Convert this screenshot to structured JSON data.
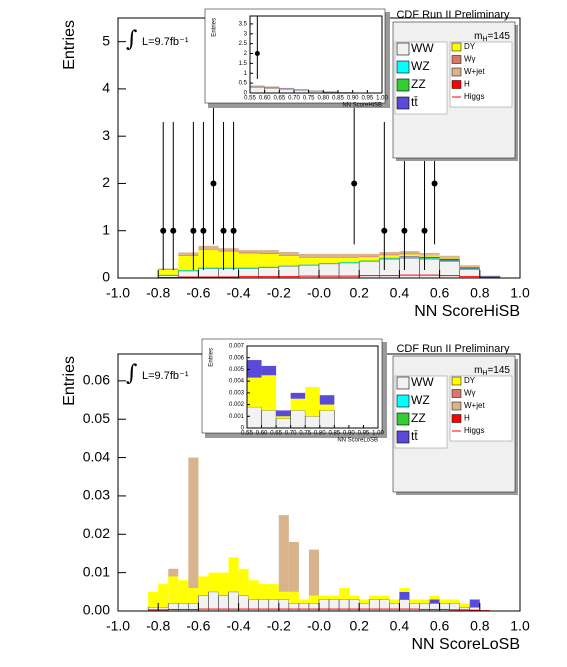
{
  "chart_data": [
    {
      "type": "histogram",
      "title": "CDF Run II Preliminary",
      "lumi_symbol": "∫",
      "lumi": "L=9.7fb⁻¹",
      "mass_label": "m",
      "mass_subscript": "H",
      "mass_value": "=145",
      "x_label": "NN ScoreHiSB",
      "y_label": "Entries",
      "xlim": [
        -1,
        1
      ],
      "ylim": [
        0,
        5.5
      ],
      "xticks": [
        {
          "value": -1,
          "label": "-1.0"
        },
        {
          "value": -0.8,
          "label": "-0.8"
        },
        {
          "value": -0.6,
          "label": "-0.6"
        },
        {
          "value": -0.4,
          "label": "-0.4"
        },
        {
          "value": -0.2,
          "label": "-0.2"
        },
        {
          "value": 0,
          "label": "-0.0"
        },
        {
          "value": 0.2,
          "label": "0.2"
        },
        {
          "value": 0.4,
          "label": "0.4"
        },
        {
          "value": 0.6,
          "label": "0.6"
        },
        {
          "value": 0.8,
          "label": "0.8"
        },
        {
          "value": 1,
          "label": "1.0"
        }
      ],
      "yticks": [
        0,
        1,
        2,
        3,
        4,
        5
      ],
      "bins": [
        -0.8,
        -0.7,
        -0.6,
        -0.5,
        -0.4,
        -0.3,
        -0.2,
        -0.1,
        0,
        0.1,
        0.2,
        0.3,
        0.4,
        0.5,
        0.6,
        0.7,
        0.8,
        0.9
      ],
      "series": [
        {
          "name": "WW",
          "color": "#f2f2f2",
          "values": [
            0.05,
            0.15,
            0.2,
            0.2,
            0.2,
            0.22,
            0.25,
            0.27,
            0.3,
            0.32,
            0.35,
            0.4,
            0.42,
            0.4,
            0.35,
            0.18,
            0.03
          ]
        },
        {
          "name": "WZ",
          "color": "#00ffff",
          "values": [
            0.01,
            0.01,
            0.01,
            0.01,
            0.01,
            0.01,
            0.01,
            0.01,
            0.01,
            0.01,
            0.01,
            0.01,
            0.01,
            0.01,
            0.01,
            0.01,
            0
          ]
        },
        {
          "name": "ZZ",
          "color": "#33cc33",
          "values": [
            0.01,
            0.01,
            0.01,
            0.01,
            0.01,
            0.01,
            0.01,
            0.01,
            0.01,
            0.01,
            0.01,
            0.01,
            0.01,
            0.01,
            0.01,
            0.01,
            0
          ]
        },
        {
          "name": "tt̄",
          "color": "#5a4bd6",
          "values": [
            0,
            0,
            0,
            0,
            0,
            0,
            0,
            0,
            0,
            0,
            0,
            0.01,
            0.02,
            0.03,
            0.04,
            0.03,
            0.01
          ]
        },
        {
          "name": "DY",
          "color": "#ffff00",
          "values": [
            0.1,
            0.3,
            0.38,
            0.34,
            0.3,
            0.27,
            0.2,
            0.14,
            0.11,
            0.09,
            0.07,
            0.05,
            0.04,
            0.03,
            0.02,
            0.01,
            0
          ]
        },
        {
          "name": "Wγ",
          "color": "#d9776b",
          "values": [
            0.01,
            0.02,
            0.02,
            0.02,
            0.02,
            0.02,
            0.02,
            0.02,
            0.02,
            0.02,
            0.02,
            0.02,
            0.02,
            0.01,
            0.01,
            0.01,
            0
          ]
        },
        {
          "name": "W+jet",
          "color": "#d9b38c",
          "values": [
            0.02,
            0.05,
            0.06,
            0.05,
            0.05,
            0.06,
            0.06,
            0.06,
            0.06,
            0.06,
            0.05,
            0.05,
            0.05,
            0.04,
            0.03,
            0.02,
            0.01
          ]
        },
        {
          "name": "H",
          "color": "#ff0000",
          "values": [
            0,
            0,
            0,
            0,
            0,
            0,
            0,
            0,
            0,
            0,
            0,
            0,
            0,
            0,
            0,
            0,
            0
          ]
        },
        {
          "name": "Higgs",
          "color": "#ff0000",
          "stack": false,
          "values": [
            0.01,
            0.02,
            0.02,
            0.02,
            0.03,
            0.03,
            0.03,
            0.04,
            0.04,
            0.04,
            0.05,
            0.05,
            0.06,
            0.06,
            0.05,
            0.03,
            0.01
          ]
        }
      ],
      "points": {
        "x": [
          -0.775,
          -0.725,
          -0.625,
          -0.575,
          -0.525,
          -0.475,
          -0.425,
          0.175,
          0.325,
          0.425,
          0.525,
          0.575
        ],
        "values": [
          1,
          1,
          1,
          1,
          2,
          1,
          1,
          2,
          1,
          1,
          1,
          2
        ],
        "yerr_low": [
          0.83,
          0.83,
          0.83,
          0.83,
          1.29,
          0.83,
          0.83,
          1.29,
          0.83,
          0.83,
          0.83,
          1.29
        ],
        "yerr_high": [
          2.3,
          2.3,
          2.3,
          2.3,
          2.64,
          2.3,
          2.3,
          2.64,
          2.3,
          2.3,
          2.3,
          2.64
        ]
      }
    },
    {
      "type": "histogram",
      "x_label": "NN ScoreHiSB",
      "y_label": "Entries",
      "xlim": [
        0.55,
        1
      ],
      "ylim": [
        0,
        3.9
      ],
      "xticks": [
        {
          "value": 0.55,
          "label": "0.55"
        },
        {
          "value": 0.6,
          "label": "0.60"
        },
        {
          "value": 0.65,
          "label": "0.65"
        },
        {
          "value": 0.7,
          "label": "0.70"
        },
        {
          "value": 0.75,
          "label": "0.75"
        },
        {
          "value": 0.8,
          "label": "0.80"
        },
        {
          "value": 0.85,
          "label": "0.85"
        },
        {
          "value": 0.9,
          "label": "0.90"
        },
        {
          "value": 0.95,
          "label": "0.95"
        },
        {
          "value": 1,
          "label": "1.00"
        }
      ],
      "yticks": [
        0,
        0.5,
        1,
        1.5,
        2,
        2.5,
        3,
        3.5
      ],
      "bins": [
        0.55,
        0.6,
        0.65,
        0.7,
        0.75,
        0.8,
        0.85,
        0.9,
        0.95,
        1
      ],
      "series": [
        {
          "color": "#f2f2f2",
          "values": [
            0.3,
            0.25,
            0.2,
            0.15,
            0.1,
            0.05,
            0.02,
            0,
            0
          ]
        },
        {
          "color": "#5a4bd6",
          "values": [
            0.03,
            0.04,
            0.03,
            0.02,
            0.01,
            0.01,
            0,
            0,
            0
          ]
        },
        {
          "color": "#ffff00",
          "values": [
            0.02,
            0.02,
            0.01,
            0.01,
            0,
            0,
            0,
            0,
            0
          ]
        },
        {
          "color": "#d9b38c",
          "values": [
            0.03,
            0.03,
            0.02,
            0.02,
            0.01,
            0.01,
            0,
            0,
            0
          ]
        }
      ],
      "points": {
        "x": [
          0.575
        ],
        "values": [
          2
        ],
        "yerr_low": [
          1.29
        ],
        "yerr_high": [
          2.64
        ]
      }
    },
    {
      "type": "histogram",
      "title": "CDF Run II Preliminary",
      "lumi_symbol": "∫",
      "lumi": "L=9.7fb⁻¹",
      "mass_label": "m",
      "mass_subscript": "H",
      "mass_value": "=145",
      "x_label": "NN ScoreLoSB",
      "y_label": "Entries",
      "xlim": [
        -1,
        1
      ],
      "ylim": [
        0,
        0.067
      ],
      "xticks": [
        {
          "value": -1,
          "label": "-1.0"
        },
        {
          "value": -0.8,
          "label": "-0.8"
        },
        {
          "value": -0.6,
          "label": "-0.6"
        },
        {
          "value": -0.4,
          "label": "-0.4"
        },
        {
          "value": -0.2,
          "label": "-0.2"
        },
        {
          "value": 0,
          "label": "-0.0"
        },
        {
          "value": 0.2,
          "label": "0.2"
        },
        {
          "value": 0.4,
          "label": "0.4"
        },
        {
          "value": 0.6,
          "label": "0.6"
        },
        {
          "value": 0.8,
          "label": "0.8"
        },
        {
          "value": 1,
          "label": "1.0"
        }
      ],
      "yticks": [
        {
          "value": 0,
          "label": "0.00"
        },
        0.01,
        0.02,
        0.03,
        0.04,
        0.05,
        0.06
      ],
      "bins": [
        -0.85,
        -0.8,
        -0.75,
        -0.7,
        -0.65,
        -0.6,
        -0.55,
        -0.5,
        -0.45,
        -0.4,
        -0.35,
        -0.3,
        -0.25,
        -0.2,
        -0.15,
        -0.1,
        -0.05,
        0,
        0.05,
        0.1,
        0.15,
        0.2,
        0.25,
        0.3,
        0.35,
        0.4,
        0.45,
        0.5,
        0.55,
        0.6,
        0.65,
        0.7,
        0.75,
        0.8,
        0.85
      ],
      "series": [
        {
          "name": "WW",
          "color": "#f2f2f2",
          "values": [
            0.001,
            0.001,
            0.002,
            0.002,
            0.002,
            0.004,
            0.005,
            0.004,
            0.005,
            0.004,
            0.003,
            0.003,
            0.003,
            0.003,
            0.002,
            0.002,
            0.002,
            0.003,
            0.003,
            0.003,
            0.003,
            0.002,
            0.003,
            0.003,
            0.002,
            0.003,
            0.002,
            0.002,
            0.002,
            0.002,
            0.002,
            0.001,
            0.001,
            0
          ]
        },
        {
          "name": "WZ",
          "color": "#00ffff",
          "values": [
            0,
            0,
            0,
            0,
            0,
            0,
            0,
            0,
            0,
            0,
            0,
            0,
            0,
            0,
            0,
            0,
            0,
            0,
            0,
            0,
            0,
            0,
            0,
            0,
            0,
            0,
            0,
            0,
            0,
            0,
            0,
            0,
            0,
            0
          ]
        },
        {
          "name": "ZZ",
          "color": "#33cc33",
          "values": [
            0,
            0,
            0,
            0,
            0,
            0,
            0,
            0,
            0,
            0,
            0,
            0,
            0,
            0,
            0,
            0,
            0,
            0,
            0,
            0,
            0,
            0,
            0,
            0,
            0,
            0,
            0,
            0,
            0,
            0,
            0,
            0,
            0,
            0
          ]
        },
        {
          "name": "tt̄",
          "color": "#5a4bd6",
          "values": [
            0,
            0,
            0,
            0,
            0,
            0,
            0,
            0,
            0,
            0,
            0,
            0,
            0,
            0,
            0,
            0,
            0,
            0,
            0,
            0,
            0,
            0,
            0,
            0,
            0,
            0.002,
            0,
            0,
            0.001,
            0,
            0,
            0,
            0.002,
            0
          ]
        },
        {
          "name": "DY",
          "color": "#ffff00",
          "values": [
            0.004,
            0.006,
            0.007,
            0.006,
            0.004,
            0.005,
            0.005,
            0.006,
            0.009,
            0.007,
            0.005,
            0.004,
            0.004,
            0.002,
            0.003,
            0.001,
            0.002,
            0.001,
            0.001,
            0.003,
            0.001,
            0.001,
            0.001,
            0.001,
            0.001,
            0.001,
            0.001,
            0.001,
            0.001,
            0.001,
            0.001,
            0.001,
            0,
            0
          ]
        },
        {
          "name": "Wγ",
          "color": "#d9776b",
          "values": [
            0,
            0,
            0,
            0,
            0,
            0,
            0,
            0,
            0,
            0,
            0,
            0,
            0,
            0,
            0,
            0,
            0,
            0,
            0,
            0,
            0,
            0,
            0,
            0,
            0,
            0,
            0,
            0,
            0,
            0,
            0,
            0,
            0,
            0
          ]
        },
        {
          "name": "W+jet",
          "color": "#d9b38c",
          "values": [
            0,
            0,
            0.002,
            0,
            0.034,
            0,
            0,
            0,
            0,
            0,
            0,
            0,
            0,
            0.02,
            0.013,
            0,
            0.012,
            0,
            0,
            0,
            0,
            0,
            0,
            0,
            0,
            0,
            0,
            0,
            0,
            0,
            0,
            0,
            0,
            0
          ]
        },
        {
          "name": "H",
          "color": "#ff0000",
          "values": [
            0,
            0,
            0,
            0,
            0,
            0,
            0,
            0,
            0,
            0,
            0,
            0,
            0,
            0,
            0,
            0,
            0,
            0,
            0,
            0,
            0,
            0,
            0,
            0,
            0,
            0,
            0,
            0,
            0,
            0,
            0,
            0,
            0,
            0
          ]
        },
        {
          "name": "Higgs",
          "color": "#ff0000",
          "stack": false,
          "values": [
            0.0003,
            0.0003,
            0.0004,
            0.0004,
            0.0004,
            0.0005,
            0.0005,
            0.0005,
            0.0005,
            0.0005,
            0.0005,
            0.0005,
            0.0005,
            0.0005,
            0.0005,
            0.0005,
            0.0005,
            0.0005,
            0.0005,
            0.0005,
            0.0005,
            0.0005,
            0.0005,
            0.0005,
            0.0005,
            0.0005,
            0.0005,
            0.0004,
            0.0004,
            0.0004,
            0.0003,
            0.0003,
            0.0002,
            0.0001
          ]
        }
      ]
    },
    {
      "type": "histogram",
      "x_label": "NN ScoreLoSB",
      "y_label": "Entries",
      "xlim": [
        0.55,
        1
      ],
      "ylim": [
        0,
        0.007
      ],
      "xticks": [
        {
          "value": 0.55,
          "label": "0.55"
        },
        {
          "value": 0.6,
          "label": "0.60"
        },
        {
          "value": 0.65,
          "label": "0.65"
        },
        {
          "value": 0.7,
          "label": "0.70"
        },
        {
          "value": 0.75,
          "label": "0.75"
        },
        {
          "value": 0.8,
          "label": "0.80"
        },
        {
          "value": 0.85,
          "label": "0.85"
        },
        {
          "value": 0.9,
          "label": "0.90"
        },
        {
          "value": 0.95,
          "label": "0.95"
        },
        {
          "value": 1,
          "label": "1.00"
        }
      ],
      "yticks": [
        0,
        0.001,
        0.002,
        0.003,
        0.004,
        0.005,
        0.006,
        0.007
      ],
      "bins": [
        0.55,
        0.6,
        0.65,
        0.7,
        0.75,
        0.8,
        0.85,
        0.9,
        0.95,
        1
      ],
      "series": [
        {
          "color": "#f2f2f2",
          "values": [
            0.0018,
            0.0015,
            0.0008,
            0.0015,
            0.001,
            0.0015,
            0,
            0,
            0
          ]
        },
        {
          "color": "#ffff00",
          "values": [
            0.0025,
            0.003,
            0.0002,
            0.001,
            0.0025,
            0.0005,
            0,
            0,
            0
          ]
        },
        {
          "color": "#5a4bd6",
          "values": [
            0.0015,
            0.0008,
            0.0005,
            0.0005,
            0,
            0.0008,
            0,
            0,
            0
          ]
        }
      ]
    }
  ]
}
